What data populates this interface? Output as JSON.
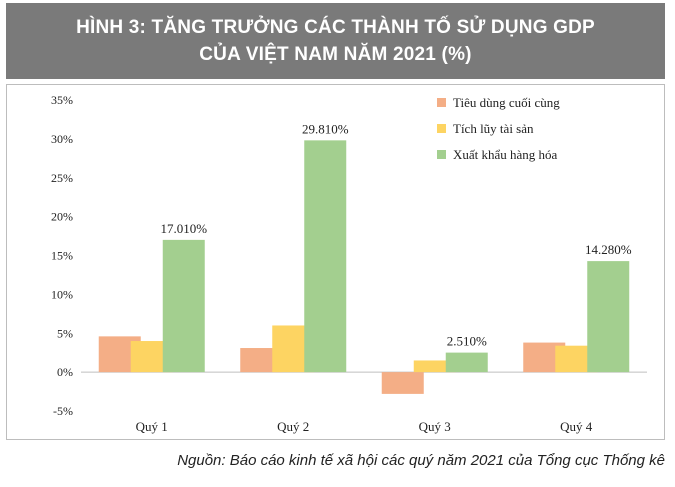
{
  "header": {
    "title_line1": "HÌNH 3: TĂNG TRƯỞNG CÁC THÀNH TỐ SỬ DỤNG GDP",
    "title_line2": "CỦA VIỆT NAM NĂM 2021 (%)"
  },
  "source": "Nguồn: Báo cáo kinh tế xã hội các quý năm 2021 của Tổng cục Thống kê",
  "colors": {
    "series1": "#f4ae86",
    "series2": "#fdd462",
    "series3": "#a3cf8f",
    "banner": "#7a7a7a"
  },
  "chart_data": {
    "type": "bar",
    "categories": [
      "Quý 1",
      "Quý 2",
      "Quý 3",
      "Quý 4"
    ],
    "series": [
      {
        "name": "Tiêu dùng cuối cùng",
        "values": [
          4.6,
          3.1,
          -2.8,
          3.8
        ]
      },
      {
        "name": "Tích lũy tài sản",
        "values": [
          4.0,
          6.0,
          1.5,
          3.4
        ]
      },
      {
        "name": "Xuất khẩu hàng hóa",
        "values": [
          17.01,
          29.81,
          2.51,
          14.28
        ]
      }
    ],
    "data_labels": [
      "17.010%",
      "29.810%",
      "2.510%",
      "14.280%"
    ],
    "yticks": [
      "35%",
      "30%",
      "25%",
      "20%",
      "15%",
      "10%",
      "5%",
      "0%",
      "-5%"
    ],
    "ytick_values": [
      35,
      30,
      25,
      20,
      15,
      10,
      5,
      0,
      -5
    ],
    "ylim": [
      -5,
      35
    ],
    "grid": false,
    "legend_position": "top-right"
  }
}
